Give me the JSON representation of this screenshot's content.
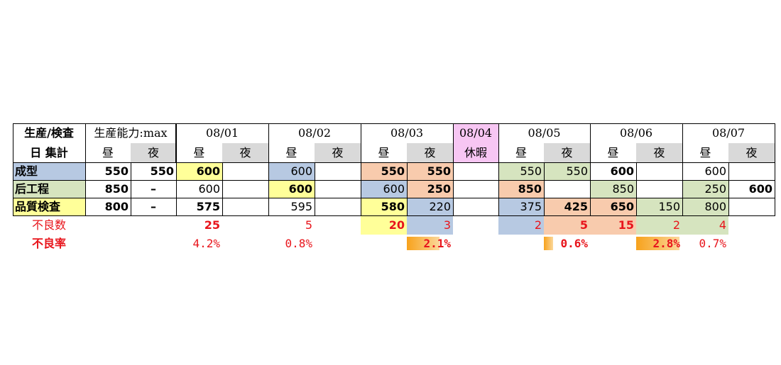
{
  "header": {
    "corner_line1": "生産/検査",
    "corner_line2": "日 集計",
    "capacity_label": "生産能力:max",
    "day_label": "昼",
    "night_label": "夜",
    "dates": [
      "08/01",
      "08/02",
      "08/03",
      "08/04",
      "08/05",
      "08/06",
      "08/07"
    ],
    "holiday_label": "休暇"
  },
  "rows": [
    {
      "label": "成型",
      "cap_day": "550",
      "cap_night": "550",
      "values": [
        "600",
        "",
        "600",
        "",
        "550",
        "550",
        "",
        "550",
        "550",
        "600",
        "",
        "600",
        ""
      ]
    },
    {
      "label": "后工程",
      "cap_day": "850",
      "cap_night": "–",
      "values": [
        "600",
        "",
        "600",
        "",
        "600",
        "250",
        "",
        "850",
        "",
        "850",
        "",
        "250",
        "600"
      ]
    },
    {
      "label": "品質検査",
      "cap_day": "800",
      "cap_night": "–",
      "values": [
        "575",
        "",
        "595",
        "",
        "580",
        "220",
        "",
        "375",
        "425",
        "650",
        "150",
        "800",
        ""
      ]
    }
  ],
  "defect_count": {
    "label": "不良数",
    "values": [
      "25",
      "",
      "5",
      "",
      "20",
      "3",
      "",
      "2",
      "5",
      "15",
      "2",
      "4",
      ""
    ]
  },
  "defect_rate": {
    "label": "不良率",
    "values": [
      "4.2%",
      "",
      "0.8%",
      "",
      "",
      "2.1%",
      "",
      "",
      "0.6%",
      "",
      "2.8%",
      "0.7%",
      ""
    ],
    "bars": [
      {
        "col": 5,
        "fraction": 0.021
      },
      {
        "col": 8,
        "fraction": 0.006
      },
      {
        "col": 10,
        "fraction": 0.028
      }
    ]
  },
  "colors": {
    "blue": "#b7c9e2",
    "green": "#d6e4bf",
    "yellow": "#ffff99",
    "orange": "#f8cbad",
    "pink": "#f7c6f3",
    "gray": "#d9d9d9",
    "red_text": "#e8141b",
    "bar_orange": "#f7a21c"
  }
}
